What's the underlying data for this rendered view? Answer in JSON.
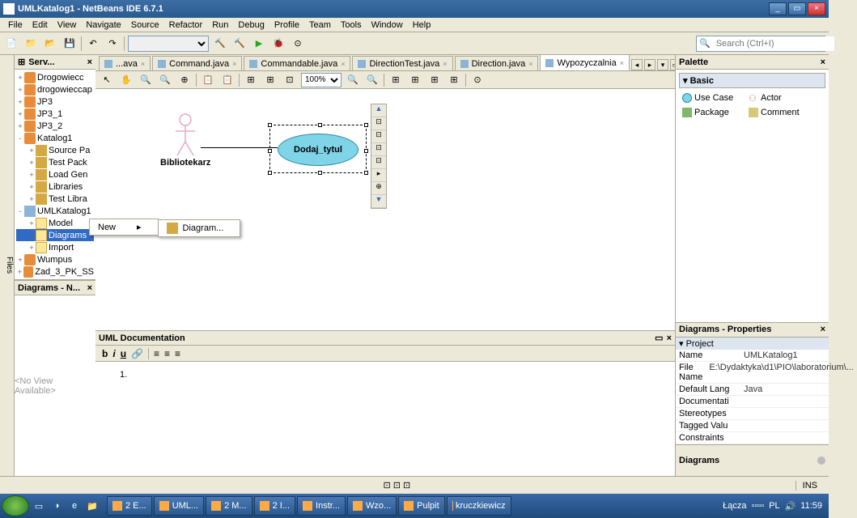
{
  "window": {
    "title": "UMLKatalog1 - NetBeans IDE 6.7.1"
  },
  "menubar": [
    "File",
    "Edit",
    "View",
    "Navigate",
    "Source",
    "Refactor",
    "Run",
    "Debug",
    "Profile",
    "Team",
    "Tools",
    "Window",
    "Help"
  ],
  "search": {
    "placeholder": "Search (Ctrl+I)"
  },
  "projects": {
    "title": "Serv...",
    "items": [
      {
        "indent": 0,
        "twist": "+",
        "icon": "coffee",
        "label": "Drogowiecc"
      },
      {
        "indent": 0,
        "twist": "+",
        "icon": "coffee",
        "label": "drogowieccap"
      },
      {
        "indent": 0,
        "twist": "+",
        "icon": "coffee",
        "label": "JP3"
      },
      {
        "indent": 0,
        "twist": "+",
        "icon": "coffee",
        "label": "JP3_1"
      },
      {
        "indent": 0,
        "twist": "+",
        "icon": "coffee",
        "label": "JP3_2"
      },
      {
        "indent": 0,
        "twist": "-",
        "icon": "coffee",
        "label": "Katalog1"
      },
      {
        "indent": 1,
        "twist": "+",
        "icon": "pkg",
        "label": "Source Pa"
      },
      {
        "indent": 1,
        "twist": "+",
        "icon": "pkg",
        "label": "Test Pack"
      },
      {
        "indent": 1,
        "twist": "+",
        "icon": "pkg",
        "label": "Load Gen"
      },
      {
        "indent": 1,
        "twist": "+",
        "icon": "pkg",
        "label": "Libraries"
      },
      {
        "indent": 1,
        "twist": "+",
        "icon": "pkg",
        "label": "Test Libra"
      },
      {
        "indent": 0,
        "twist": "-",
        "icon": "uml",
        "label": "UMLKatalog1"
      },
      {
        "indent": 1,
        "twist": "+",
        "icon": "folder",
        "label": "Model"
      },
      {
        "indent": 1,
        "twist": "+",
        "icon": "folder",
        "label": "Diagrams",
        "sel": true
      },
      {
        "indent": 1,
        "twist": "+",
        "icon": "folder",
        "label": "Import"
      },
      {
        "indent": 0,
        "twist": "+",
        "icon": "coffee",
        "label": "Wumpus"
      },
      {
        "indent": 0,
        "twist": "+",
        "icon": "coffee",
        "label": "Zad_3_PK_SS"
      }
    ]
  },
  "navigator": {
    "title": "Diagrams - N...",
    "empty": "<No View Available>"
  },
  "tabs": [
    {
      "label": "...ava",
      "active": false
    },
    {
      "label": "Command.java",
      "active": false
    },
    {
      "label": "Commandable.java",
      "active": false
    },
    {
      "label": "DirectionTest.java",
      "active": false
    },
    {
      "label": "Direction.java",
      "active": false
    },
    {
      "label": "Wypozyczalnia",
      "active": true
    }
  ],
  "zoom": "100%",
  "diagram": {
    "actor_label": "Bibliotekarz",
    "actor_color": "#e7a8c8",
    "usecase_label": "Dodaj_tytul",
    "usecase_fill": "#7fd4e8",
    "usecase_border": "#2a8aa8",
    "background": "#ffffff"
  },
  "context_menu": {
    "new": "New",
    "diagram": "Diagram..."
  },
  "doc": {
    "title": "UML Documentation",
    "list_marker": "1."
  },
  "palette": {
    "title": "Palette",
    "category": "Basic",
    "items": [
      {
        "label": "Use Case",
        "color": "#7fd4e8",
        "shape": "ellipse"
      },
      {
        "label": "Actor",
        "color": "#d08aa8",
        "shape": "stick"
      },
      {
        "label": "Package",
        "color": "#7fb868",
        "shape": "folder"
      },
      {
        "label": "Comment",
        "color": "#d8c878",
        "shape": "note"
      }
    ]
  },
  "properties": {
    "title": "Diagrams - Properties",
    "category": "Project",
    "rows": [
      {
        "k": "Name",
        "v": "UMLKatalog1"
      },
      {
        "k": "File Name",
        "v": "E:\\Dydaktyka\\d1\\PIO\\laboratorium\\..."
      },
      {
        "k": "Default Lang",
        "v": "Java"
      },
      {
        "k": "Documentati",
        "v": ""
      },
      {
        "k": "Stereotypes",
        "v": ""
      },
      {
        "k": "Tagged Valu",
        "v": ""
      },
      {
        "k": "Constraints",
        "v": ""
      }
    ],
    "diagrams_label": "Diagrams"
  },
  "status": {
    "ins": "INS"
  },
  "taskbar": {
    "items": [
      "2 E...",
      "UML...",
      "2 M...",
      "2 I...",
      "Instr...",
      "Wzo...",
      "Pulpit",
      "kruczkiewicz"
    ],
    "tray": {
      "net": "Łącza",
      "lang": "PL",
      "time": "11:59"
    }
  }
}
